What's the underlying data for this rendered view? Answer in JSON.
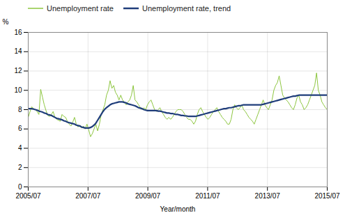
{
  "chart_data": {
    "type": "line",
    "xlabel": "Year/month",
    "ylabel": "%",
    "xlim": [
      2005.5,
      2015.5
    ],
    "xticks": [
      {
        "value": 2005.5,
        "label": "2005/07"
      },
      {
        "value": 2007.5,
        "label": "2007/07"
      },
      {
        "value": 2009.5,
        "label": "2009/07"
      },
      {
        "value": 2011.5,
        "label": "2011/07"
      },
      {
        "value": 2013.5,
        "label": "2013/07"
      },
      {
        "value": 2015.5,
        "label": "2015/07"
      }
    ],
    "ylim": [
      0,
      16
    ],
    "yticks": [
      0,
      2,
      4,
      6,
      8,
      10,
      12,
      14,
      16
    ],
    "grid": true,
    "legend": "top",
    "x": [
      2005.5,
      2005.5595,
      2005.619,
      2005.6786,
      2005.7381,
      2005.7976,
      2005.8571,
      2005.9167,
      2005.9762,
      2006.0357,
      2006.0952,
      2006.1548,
      2006.2143,
      2006.2738,
      2006.3333,
      2006.3929,
      2006.4524,
      2006.5119,
      2006.5714,
      2006.631,
      2006.6905,
      2006.75,
      2006.8095,
      2006.869,
      2006.9286,
      2006.9881,
      2007.0476,
      2007.1071,
      2007.1667,
      2007.2262,
      2007.2857,
      2007.3452,
      2007.4048,
      2007.4643,
      2007.5238,
      2007.5833,
      2007.6429,
      2007.7024,
      2007.7619,
      2007.8214,
      2007.881,
      2007.9405,
      2008,
      2008.0595,
      2008.119,
      2008.1786,
      2008.2381,
      2008.2976,
      2008.3571,
      2008.4167,
      2008.4762,
      2008.5357,
      2008.5952,
      2008.6548,
      2008.7143,
      2008.7738,
      2008.8333,
      2008.8929,
      2008.9524,
      2009.0119,
      2009.0714,
      2009.131,
      2009.1905,
      2009.25,
      2009.3095,
      2009.369,
      2009.4286,
      2009.4881,
      2009.5476,
      2009.6071,
      2009.6667,
      2009.7262,
      2009.7857,
      2009.8452,
      2009.9048,
      2009.9643,
      2010.0238,
      2010.0833,
      2010.1429,
      2010.2024,
      2010.2619,
      2010.3214,
      2010.381,
      2010.4405,
      2010.5,
      2010.5595,
      2010.619,
      2010.6786,
      2010.7381,
      2010.7976,
      2010.8571,
      2010.9167,
      2010.9762,
      2011.0357,
      2011.0952,
      2011.1548,
      2011.2143,
      2011.2738,
      2011.3333,
      2011.3929,
      2011.4524,
      2011.5119,
      2011.5714,
      2011.631,
      2011.6905,
      2011.75,
      2011.8095,
      2011.869,
      2011.9286,
      2011.9881,
      2012.0476,
      2012.1071,
      2012.1667,
      2012.2262,
      2012.2857,
      2012.3452,
      2012.4048,
      2012.4643,
      2012.5238,
      2012.5833,
      2012.6429,
      2012.7024,
      2012.7619,
      2012.8214,
      2012.881,
      2012.9405,
      2013,
      2013.0595,
      2013.119,
      2013.1786,
      2013.2381,
      2013.2976,
      2013.3571,
      2013.4167,
      2013.4762,
      2013.5357,
      2013.5952,
      2013.6548,
      2013.7143,
      2013.7738,
      2013.8333,
      2013.8929,
      2013.9524,
      2014.0119,
      2014.0714,
      2014.131,
      2014.1905,
      2014.25,
      2014.3095,
      2014.369,
      2014.4286,
      2014.4881,
      2014.5476,
      2014.6071,
      2014.6667,
      2014.7262,
      2014.7857,
      2014.8452,
      2014.9048,
      2014.9643,
      2015.0238,
      2015.0833,
      2015.1429,
      2015.2024,
      2015.2619,
      2015.3214,
      2015.381,
      2015.4405,
      2015.5
    ],
    "series": [
      {
        "name": "Unemployment rate",
        "color": "#8dc63f",
        "values": [
          7.2,
          7.8,
          8.3,
          8.1,
          8.0,
          7.8,
          7.5,
          10.1,
          9.3,
          8.5,
          7.9,
          7.4,
          7.3,
          7.5,
          7.8,
          7.2,
          7.0,
          6.9,
          6.8,
          7.5,
          7.3,
          7.2,
          6.8,
          6.5,
          6.3,
          6.7,
          7.2,
          6.5,
          6.2,
          6.4,
          6.1,
          6.3,
          6.0,
          6.5,
          5.9,
          5.2,
          5.5,
          6.0,
          6.5,
          5.8,
          6.5,
          7.5,
          8.0,
          8.5,
          9.5,
          10.0,
          11.0,
          10.2,
          10.5,
          9.8,
          9.5,
          9.0,
          9.5,
          9.0,
          8.8,
          8.5,
          8.8,
          9.0,
          9.5,
          10.5,
          9.0,
          8.8,
          8.5,
          8.2,
          8.0,
          8.2,
          8.0,
          8.5,
          8.8,
          9.0,
          8.5,
          8.0,
          7.8,
          8.0,
          8.2,
          7.8,
          7.5,
          7.2,
          7.0,
          7.2,
          7.0,
          7.2,
          7.5,
          7.8,
          8.0,
          8.0,
          8.0,
          7.8,
          7.5,
          7.2,
          7.0,
          7.0,
          6.8,
          6.5,
          6.8,
          7.5,
          8.0,
          8.2,
          7.8,
          7.5,
          7.2,
          7.0,
          7.2,
          7.5,
          7.8,
          8.0,
          8.2,
          7.8,
          7.5,
          7.2,
          7.0,
          6.8,
          6.5,
          6.5,
          7.0,
          8.0,
          8.5,
          8.2,
          8.0,
          8.2,
          8.5,
          8.0,
          7.8,
          7.5,
          7.2,
          7.0,
          6.8,
          6.5,
          7.0,
          7.5,
          8.0,
          8.5,
          9.0,
          8.5,
          8.2,
          8.0,
          8.5,
          9.0,
          10.0,
          10.5,
          10.8,
          11.5,
          10.5,
          9.5,
          9.2,
          9.0,
          8.8,
          8.5,
          8.2,
          8.0,
          8.5,
          9.2,
          9.5,
          8.8,
          8.5,
          8.0,
          8.2,
          8.5,
          9.0,
          9.5,
          10.0,
          10.5,
          11.8,
          10.0,
          9.5,
          8.8,
          8.5,
          8.2,
          8.0
        ]
      },
      {
        "name": "Unemployment rate, trend",
        "color": "#1f3d7a",
        "values": [
          8.1,
          8.1,
          8.1,
          8.05,
          8.0,
          7.95,
          7.85,
          7.8,
          7.75,
          7.65,
          7.6,
          7.5,
          7.45,
          7.4,
          7.3,
          7.2,
          7.1,
          7.05,
          7.0,
          6.95,
          6.85,
          6.8,
          6.7,
          6.65,
          6.6,
          6.55,
          6.5,
          6.4,
          6.35,
          6.3,
          6.2,
          6.15,
          6.1,
          6.1,
          6.1,
          6.15,
          6.25,
          6.4,
          6.6,
          6.9,
          7.2,
          7.5,
          7.8,
          8.05,
          8.2,
          8.35,
          8.5,
          8.6,
          8.65,
          8.7,
          8.75,
          8.8,
          8.8,
          8.8,
          8.75,
          8.7,
          8.6,
          8.55,
          8.5,
          8.45,
          8.4,
          8.3,
          8.2,
          8.15,
          8.1,
          8.0,
          7.95,
          7.9,
          7.9,
          7.9,
          7.9,
          7.9,
          7.9,
          7.85,
          7.85,
          7.8,
          7.75,
          7.7,
          7.65,
          7.65,
          7.6,
          7.6,
          7.55,
          7.5,
          7.5,
          7.45,
          7.4,
          7.4,
          7.35,
          7.35,
          7.3,
          7.3,
          7.3,
          7.3,
          7.3,
          7.35,
          7.4,
          7.45,
          7.5,
          7.55,
          7.6,
          7.65,
          7.7,
          7.75,
          7.8,
          7.85,
          7.9,
          7.95,
          8.0,
          8.05,
          8.1,
          8.1,
          8.15,
          8.2,
          8.2,
          8.25,
          8.3,
          8.35,
          8.4,
          8.4,
          8.45,
          8.5,
          8.5,
          8.5,
          8.5,
          8.5,
          8.5,
          8.5,
          8.5,
          8.5,
          8.5,
          8.5,
          8.55,
          8.6,
          8.65,
          8.7,
          8.75,
          8.8,
          8.85,
          8.9,
          8.95,
          9.0,
          9.05,
          9.1,
          9.15,
          9.2,
          9.25,
          9.3,
          9.35,
          9.4,
          9.4,
          9.45,
          9.5,
          9.5,
          9.5,
          9.5,
          9.5,
          9.5,
          9.5,
          9.5,
          9.5,
          9.5,
          9.5,
          9.5,
          9.5,
          9.5,
          9.5,
          9.5,
          9.5
        ]
      }
    ]
  }
}
